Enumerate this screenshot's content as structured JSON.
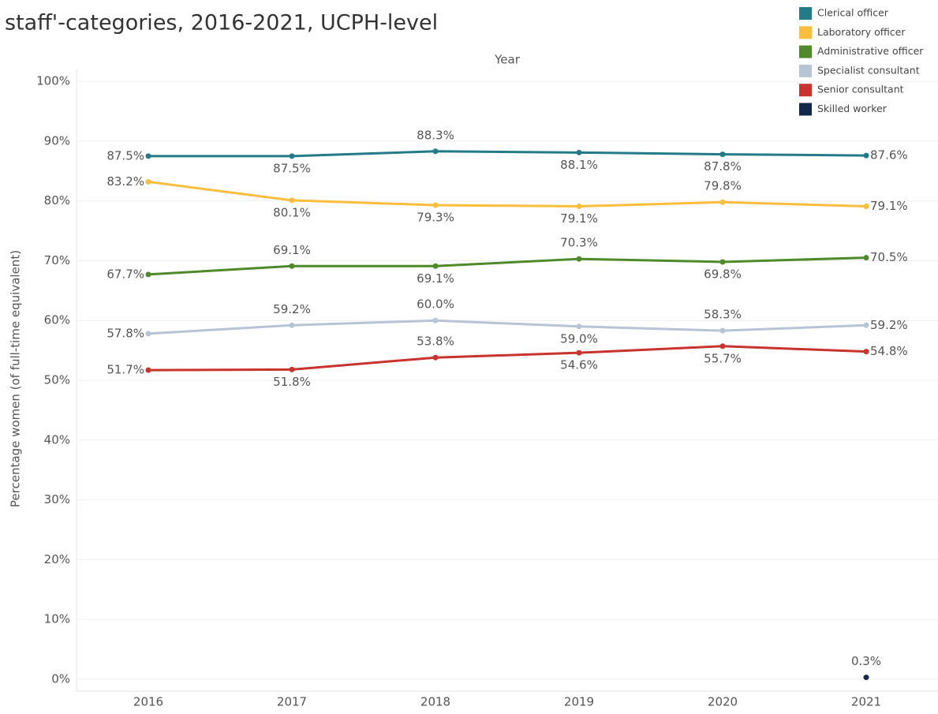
{
  "chart_data": {
    "type": "line",
    "title": "staff'-categories, 2016-2021, UCPH-level",
    "x_label": "Year",
    "y_label": "Percentage women (of full-time equivalent)",
    "categories": [
      "2016",
      "2017",
      "2018",
      "2019",
      "2020",
      "2021"
    ],
    "ylim": [
      -2,
      102
    ],
    "yticks": [
      {
        "value": 0,
        "label": "0%"
      },
      {
        "value": 10,
        "label": "10%"
      },
      {
        "value": 20,
        "label": "20%"
      },
      {
        "value": 30,
        "label": "30%"
      },
      {
        "value": 40,
        "label": "40%"
      },
      {
        "value": 50,
        "label": "50%"
      },
      {
        "value": 60,
        "label": "60%"
      },
      {
        "value": 70,
        "label": "70%"
      },
      {
        "value": 80,
        "label": "80%"
      },
      {
        "value": 90,
        "label": "90%"
      },
      {
        "value": 100,
        "label": "100%"
      }
    ],
    "grid": true,
    "legend": "top-right",
    "series": [
      {
        "name": "Clerical officer",
        "color": "#237b89",
        "values": [
          87.5,
          87.5,
          88.3,
          88.1,
          87.8,
          87.6
        ],
        "value_labels": [
          "87.5%",
          "87.5%",
          "88.3%",
          "88.1%",
          "87.8%",
          "87.6%"
        ]
      },
      {
        "name": "Laboratory officer",
        "color": "#fbbd3c",
        "values": [
          83.2,
          80.1,
          79.3,
          79.1,
          79.8,
          79.1
        ],
        "value_labels": [
          "83.2%",
          "80.1%",
          "79.3%",
          "79.1%",
          "79.8%",
          "79.1%"
        ]
      },
      {
        "name": "Administrative officer",
        "color": "#4e8a2a",
        "values": [
          67.7,
          69.1,
          69.1,
          70.3,
          69.8,
          70.5
        ],
        "value_labels": [
          "67.7%",
          "69.1%",
          "69.1%",
          "70.3%",
          "69.8%",
          "70.5%"
        ]
      },
      {
        "name": "Specialist consultant",
        "color": "#b6c4d5",
        "values": [
          57.8,
          59.2,
          60.0,
          59.0,
          58.3,
          59.2
        ],
        "value_labels": [
          "57.8%",
          "59.2%",
          "60.0%",
          "59.0%",
          "58.3%",
          "59.2%"
        ]
      },
      {
        "name": "Senior consultant",
        "color": "#c8342d",
        "values": [
          51.7,
          51.8,
          53.8,
          54.6,
          55.7,
          54.8
        ],
        "value_labels": [
          "51.7%",
          "51.8%",
          "53.8%",
          "54.6%",
          "55.7%",
          "54.8%"
        ]
      },
      {
        "name": "Skilled worker",
        "color": "#13294b",
        "values": [
          null,
          null,
          null,
          null,
          null,
          0.3
        ],
        "value_labels": [
          null,
          null,
          null,
          null,
          null,
          "0.3%"
        ]
      }
    ]
  }
}
